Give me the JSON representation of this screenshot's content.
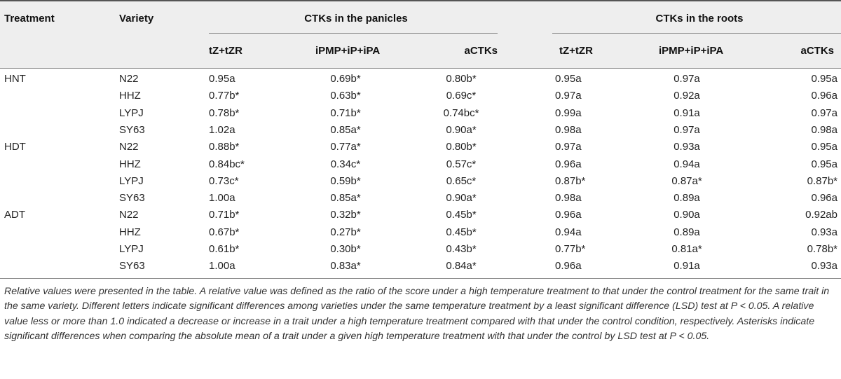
{
  "headers": {
    "treatment": "Treatment",
    "variety": "Variety",
    "group_panicles": "CTKs in the panicles",
    "group_roots": "CTKs in the roots",
    "panicles": [
      "tZ+tZR",
      "iPMP+iP+iPA",
      "aCTKs"
    ],
    "roots": [
      "tZ+tZR",
      "iPMP+iP+iPA",
      "aCTKs"
    ]
  },
  "rows": [
    {
      "treatment": "HNT",
      "variety": "N22",
      "p1": "0.95a",
      "p2": "0.69b*",
      "p3": "0.80b*",
      "r1": "0.95a",
      "r2": "0.97a",
      "r3": "0.95a"
    },
    {
      "treatment": "",
      "variety": "HHZ",
      "p1": "0.77b*",
      "p2": "0.63b*",
      "p3": "0.69c*",
      "r1": "0.97a",
      "r2": "0.92a",
      "r3": "0.96a"
    },
    {
      "treatment": "",
      "variety": "LYPJ",
      "p1": "0.78b*",
      "p2": "0.71b*",
      "p3": "0.74bc*",
      "r1": "0.99a",
      "r2": "0.91a",
      "r3": "0.97a"
    },
    {
      "treatment": "",
      "variety": "SY63",
      "p1": "1.02a",
      "p2": "0.85a*",
      "p3": "0.90a*",
      "r1": "0.98a",
      "r2": "0.97a",
      "r3": "0.98a"
    },
    {
      "treatment": "HDT",
      "variety": "N22",
      "p1": "0.88b*",
      "p2": "0.77a*",
      "p3": "0.80b*",
      "r1": "0.97a",
      "r2": "0.93a",
      "r3": "0.95a"
    },
    {
      "treatment": "",
      "variety": "HHZ",
      "p1": "0.84bc*",
      "p2": "0.34c*",
      "p3": "0.57c*",
      "r1": "0.96a",
      "r2": "0.94a",
      "r3": "0.95a"
    },
    {
      "treatment": "",
      "variety": "LYPJ",
      "p1": "0.73c*",
      "p2": "0.59b*",
      "p3": "0.65c*",
      "r1": "0.87b*",
      "r2": "0.87a*",
      "r3": "0.87b*"
    },
    {
      "treatment": "",
      "variety": "SY63",
      "p1": "1.00a",
      "p2": "0.85a*",
      "p3": "0.90a*",
      "r1": "0.98a",
      "r2": "0.89a",
      "r3": "0.96a"
    },
    {
      "treatment": "ADT",
      "variety": "N22",
      "p1": "0.71b*",
      "p2": "0.32b*",
      "p3": "0.45b*",
      "r1": "0.96a",
      "r2": "0.90a",
      "r3": "0.92ab"
    },
    {
      "treatment": "",
      "variety": "HHZ",
      "p1": "0.67b*",
      "p2": "0.27b*",
      "p3": "0.45b*",
      "r1": "0.94a",
      "r2": "0.89a",
      "r3": "0.93a"
    },
    {
      "treatment": "",
      "variety": "LYPJ",
      "p1": "0.61b*",
      "p2": "0.30b*",
      "p3": "0.43b*",
      "r1": "0.77b*",
      "r2": "0.81a*",
      "r3": "0.78b*"
    },
    {
      "treatment": "",
      "variety": "SY63",
      "p1": "1.00a",
      "p2": "0.83a*",
      "p3": "0.84a*",
      "r1": "0.96a",
      "r2": "0.91a",
      "r3": "0.93a"
    }
  ],
  "footnote": "Relative values were presented in the table. A relative value was defined as the ratio of the score under a high temperature treatment to that under the control treatment for the same trait in the same variety. Different letters indicate significant differences among varieties under the same temperature treatment by a least significant difference (LSD) test at P < 0.05. A relative value less or more than 1.0 indicated a decrease or increase in a trait under a high temperature treatment compared with that under the control condition, respectively. Asterisks indicate significant differences when comparing the absolute mean of a trait under a given high temperature treatment with that under the control by LSD test at P < 0.05."
}
